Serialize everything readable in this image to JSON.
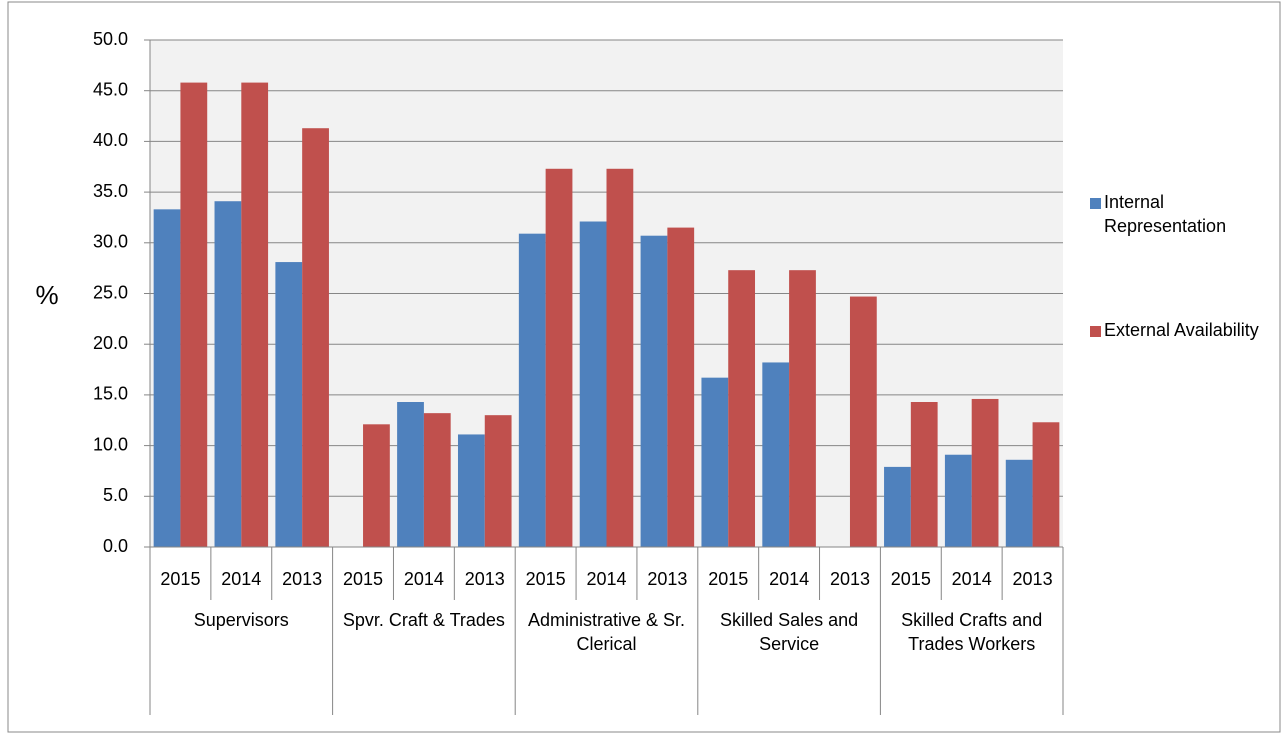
{
  "chart_data": {
    "type": "bar",
    "y_label": "%",
    "groups": [
      {
        "label": "Supervisors",
        "categories": [
          "2015",
          "2014",
          "2013"
        ]
      },
      {
        "label": "Spvr. Craft & Trades",
        "categories": [
          "2015",
          "2014",
          "2013"
        ]
      },
      {
        "label": "Administrative & Sr. Clerical",
        "categories": [
          "2015",
          "2014",
          "2013"
        ]
      },
      {
        "label": "Skilled Sales and Service",
        "categories": [
          "2015",
          "2014",
          "2013"
        ]
      },
      {
        "label": "Skilled Crafts and Trades Workers",
        "categories": [
          "2015",
          "2014",
          "2013"
        ]
      }
    ],
    "series": [
      {
        "name": "Internal Representation",
        "color": "#4f81bd",
        "values": [
          33.3,
          34.1,
          28.1,
          null,
          14.3,
          11.1,
          30.9,
          32.1,
          30.7,
          16.7,
          18.2,
          null,
          7.9,
          9.1,
          8.6
        ]
      },
      {
        "name": "External Availability",
        "color": "#c0504d",
        "values": [
          45.8,
          45.8,
          41.3,
          12.1,
          13.2,
          13.0,
          37.3,
          37.3,
          31.5,
          27.3,
          27.3,
          24.7,
          14.3,
          14.6,
          12.3
        ]
      }
    ],
    "ylim": [
      0,
      50
    ],
    "yticks": [
      {
        "value": 0,
        "label": "0.0"
      },
      {
        "value": 5,
        "label": "5.0"
      },
      {
        "value": 10,
        "label": "10.0"
      },
      {
        "value": 15,
        "label": "15.0"
      },
      {
        "value": 20,
        "label": "20.0"
      },
      {
        "value": 25,
        "label": "25.0"
      },
      {
        "value": 30,
        "label": "30.0"
      },
      {
        "value": 35,
        "label": "35.0"
      },
      {
        "value": 40,
        "label": "40.0"
      },
      {
        "value": 45,
        "label": "45.0"
      },
      {
        "value": 50,
        "label": "50.0"
      }
    ],
    "grid": true,
    "legend": "right"
  }
}
